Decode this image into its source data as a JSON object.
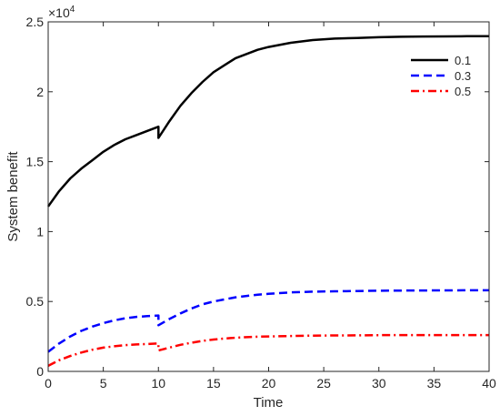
{
  "chart_data": {
    "type": "line",
    "xlabel": "Time",
    "ylabel": "System benefit",
    "xlim": [
      0,
      40
    ],
    "ylim": [
      0,
      25000
    ],
    "y_exponent_label": "×10",
    "y_exponent_power": "4",
    "xticks": [
      0,
      5,
      10,
      15,
      20,
      25,
      30,
      35,
      40
    ],
    "xtick_labels": [
      "0",
      "5",
      "10",
      "15",
      "20",
      "25",
      "30",
      "35",
      "40"
    ],
    "yticks": [
      0,
      5000,
      10000,
      15000,
      20000,
      25000
    ],
    "ytick_labels": [
      "0",
      "0.5",
      "1",
      "1.5",
      "2",
      "2.5"
    ],
    "grid": false,
    "legend_position": "top-right",
    "series": [
      {
        "name": "0.1",
        "color": "#000000",
        "dash": "solid",
        "x": [
          0,
          1,
          2,
          3,
          4,
          5,
          6,
          7,
          8,
          9,
          10,
          10,
          11,
          12,
          13,
          14,
          15,
          16,
          17,
          18,
          19,
          20,
          22,
          24,
          26,
          28,
          30,
          32,
          34,
          36,
          38,
          40
        ],
        "y": [
          11800,
          12900,
          13800,
          14500,
          15100,
          15700,
          16200,
          16600,
          16900,
          17200,
          17500,
          16700,
          17900,
          19000,
          19900,
          20700,
          21400,
          21900,
          22400,
          22700,
          23000,
          23200,
          23500,
          23700,
          23800,
          23850,
          23900,
          23930,
          23950,
          23960,
          23970,
          23980
        ]
      },
      {
        "name": "0.3",
        "color": "#0000ff",
        "dash": "dashed",
        "x": [
          0,
          1,
          2,
          3,
          4,
          5,
          6,
          7,
          8,
          9,
          10,
          10,
          11,
          12,
          13,
          14,
          15,
          16,
          17,
          18,
          19,
          20,
          22,
          24,
          26,
          28,
          30,
          32,
          34,
          36,
          38,
          40
        ],
        "y": [
          1400,
          2000,
          2500,
          2900,
          3200,
          3450,
          3650,
          3800,
          3900,
          3950,
          4000,
          3300,
          3750,
          4150,
          4500,
          4800,
          5000,
          5150,
          5300,
          5400,
          5480,
          5550,
          5650,
          5700,
          5730,
          5750,
          5770,
          5780,
          5790,
          5795,
          5800,
          5800
        ]
      },
      {
        "name": "0.5",
        "color": "#ff0000",
        "dash": "dashdot",
        "x": [
          0,
          1,
          2,
          3,
          4,
          5,
          6,
          7,
          8,
          9,
          10,
          10,
          11,
          12,
          13,
          14,
          15,
          16,
          17,
          18,
          19,
          20,
          22,
          24,
          26,
          28,
          30,
          32,
          34,
          36,
          38,
          40
        ],
        "y": [
          400,
          800,
          1100,
          1350,
          1550,
          1700,
          1800,
          1880,
          1930,
          1960,
          2000,
          1500,
          1700,
          1900,
          2050,
          2180,
          2280,
          2350,
          2410,
          2450,
          2480,
          2500,
          2530,
          2560,
          2570,
          2580,
          2590,
          2595,
          2600,
          2600,
          2600,
          2600
        ]
      }
    ]
  }
}
